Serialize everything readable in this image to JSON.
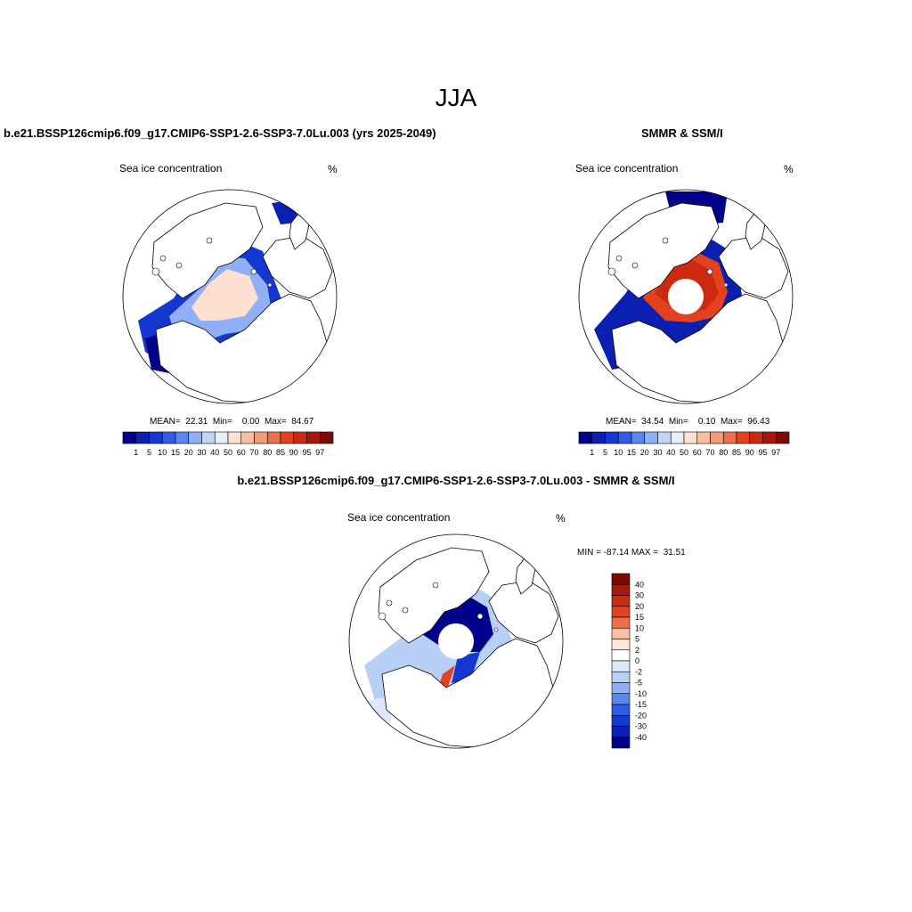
{
  "figure": {
    "title": "JJA",
    "colors": {
      "ice_scale": [
        "#00008b",
        "#0b1fb0",
        "#1437d0",
        "#2f5ce8",
        "#5a86f0",
        "#8fb0f4",
        "#c0d4f8",
        "#e6eefc",
        "#fde0d2",
        "#f8bfa4",
        "#f29a7a",
        "#ec6f4a",
        "#e4421f",
        "#cc2a10",
        "#a8180a",
        "#7e0a02"
      ],
      "diff_scale": [
        "#7e0a02",
        "#a8180a",
        "#cc2a10",
        "#e4421f",
        "#ec6f4a",
        "#f8bfa4",
        "#fde8dc",
        "#ffffff",
        "#dde8fb",
        "#b8cff6",
        "#8fb0f4",
        "#5a86f0",
        "#2f5ce8",
        "#1437d0",
        "#0b1fb0",
        "#00008b"
      ]
    }
  },
  "chart_data": [
    {
      "type": "heatmap",
      "title": "b.e21.BSSP126cmip6.f09_g17.CMIP6-SSP1-2.6-SSP3-7.0Lu.003 (yrs 2025-2049)",
      "subtitle": "Sea ice concentration",
      "units": "%",
      "stats": {
        "mean": "22.31",
        "min": "0.00",
        "max": "84.67"
      },
      "stats_text": "MEAN=  22.31  Min=    0.00  Max=  84.67",
      "colorbar_levels": [
        "1",
        "5",
        "10",
        "15",
        "20",
        "30",
        "40",
        "50",
        "60",
        "70",
        "80",
        "85",
        "90",
        "95",
        "97"
      ],
      "pole_hole": false
    },
    {
      "type": "heatmap",
      "title": "SMMR & SSM/I",
      "subtitle": "Sea ice concentration",
      "units": "%",
      "stats": {
        "mean": "34.54",
        "min": "0.10",
        "max": "96.43"
      },
      "stats_text": "MEAN=  34.54  Min=    0.10  Max=  96.43",
      "colorbar_levels": [
        "1",
        "5",
        "10",
        "15",
        "20",
        "30",
        "40",
        "50",
        "60",
        "70",
        "80",
        "85",
        "90",
        "95",
        "97"
      ],
      "pole_hole": true
    },
    {
      "type": "heatmap",
      "title": "b.e21.BSSP126cmip6.f09_g17.CMIP6-SSP1-2.6-SSP3-7.0Lu.003 - SMMR & SSM/I",
      "subtitle": "Sea ice concentration",
      "units": "%",
      "stats": {
        "min": "-87.14",
        "max": "31.51"
      },
      "stats_text": "MIN = -87.14 MAX =  31.51",
      "colorbar_levels": [
        "40",
        "30",
        "20",
        "15",
        "10",
        "5",
        "2",
        "0",
        "-2",
        "-5",
        "-10",
        "-15",
        "-20",
        "-30",
        "-40"
      ],
      "pole_hole": true
    }
  ]
}
